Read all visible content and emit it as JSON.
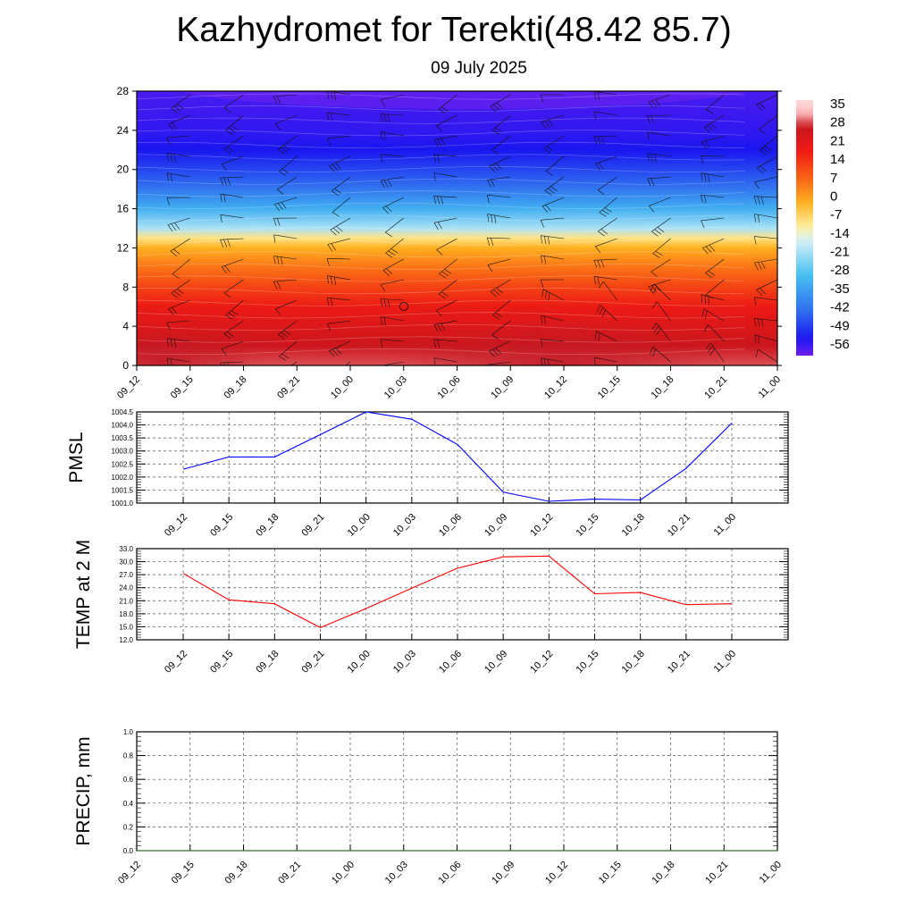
{
  "title": "Kazhydromet for Terekti(48.42 85.7)",
  "subtitle": "09 July 2025",
  "time_labels": [
    "09_12",
    "09_15",
    "09_18",
    "09_21",
    "10_00",
    "10_03",
    "10_06",
    "10_09",
    "10_12",
    "10_15",
    "10_18",
    "10_21",
    "11_00"
  ],
  "chart_data": [
    {
      "type": "heatmap",
      "name": "temperature-wind-cross-section",
      "x": [
        "09_12",
        "09_15",
        "09_18",
        "09_21",
        "10_00",
        "10_03",
        "10_06",
        "10_09",
        "10_12",
        "10_15",
        "10_18",
        "10_21",
        "11_00"
      ],
      "y_ticks": [
        0,
        4,
        8,
        12,
        16,
        20,
        24,
        28
      ],
      "ylim": [
        0,
        28
      ],
      "colorbar_ticks": [
        35,
        28,
        21,
        14,
        7,
        0,
        -7,
        -14,
        -21,
        -28,
        -35,
        -42,
        -49,
        -56
      ],
      "colorbar_range": [
        -63,
        42
      ],
      "temperature_profile_by_level": [
        {
          "y": 0,
          "t": 33
        },
        {
          "y": 2,
          "t": 30
        },
        {
          "y": 4,
          "t": 26
        },
        {
          "y": 6,
          "t": 22
        },
        {
          "y": 8,
          "t": 15
        },
        {
          "y": 10,
          "t": 8
        },
        {
          "y": 12,
          "t": 0
        },
        {
          "y": 13,
          "t": -8
        },
        {
          "y": 14,
          "t": -20
        },
        {
          "y": 16,
          "t": -33
        },
        {
          "y": 18,
          "t": -43
        },
        {
          "y": 20,
          "t": -50
        },
        {
          "y": 22,
          "t": -56
        },
        {
          "y": 24,
          "t": -58
        },
        {
          "y": 26,
          "t": -59
        },
        {
          "y": 28,
          "t": -60
        }
      ],
      "colors": {
        "warm_max": "#c8161e",
        "red": "#f01a14",
        "orange": "#fa6414",
        "amber": "#ffb020",
        "yellow": "#fff0a0",
        "light_cyan": "#d4f0fa",
        "cyan": "#46c0f0",
        "blue": "#2e6cf0",
        "deep_blue": "#1a16f0",
        "violet": "#6e1ef0",
        "pale_top": "#ffc4c4"
      }
    },
    {
      "type": "line",
      "name": "PMSL",
      "ylabel": "PMSL",
      "x": [
        "09_12",
        "09_15",
        "09_18",
        "09_21",
        "10_00",
        "10_03",
        "10_06",
        "10_09",
        "10_12",
        "10_15",
        "10_18",
        "10_21",
        "11_00"
      ],
      "y_ticks": [
        1001.0,
        1001.5,
        1002.0,
        1002.5,
        1003.0,
        1003.5,
        1004.0,
        1004.5
      ],
      "y_tick_labels": [
        "1001.0",
        "1001.5",
        "1002.0",
        "1002.5",
        "1003.0",
        "1003.5",
        "1004.0",
        "1004.5"
      ],
      "ylim": [
        1001.0,
        1004.5
      ],
      "values": [
        1002.3,
        1002.77,
        1002.77,
        1003.63,
        1004.5,
        1004.22,
        1003.25,
        1001.42,
        1001.07,
        1001.15,
        1001.12,
        1002.33,
        1004.07
      ],
      "color": "#0000ff",
      "grid": true
    },
    {
      "type": "line",
      "name": "TEMP at 2 M",
      "ylabel": "TEMP at 2 M",
      "x": [
        "09_12",
        "09_15",
        "09_18",
        "09_21",
        "10_00",
        "10_03",
        "10_06",
        "10_09",
        "10_12",
        "10_15",
        "10_18",
        "10_21",
        "11_00"
      ],
      "y_ticks": [
        12.0,
        15.0,
        18.0,
        21.0,
        24.0,
        27.0,
        30.0,
        33.0
      ],
      "y_tick_labels": [
        "12.0",
        "15.0",
        "18.0",
        "21.0",
        "24.0",
        "27.0",
        "30.0",
        "33.0"
      ],
      "ylim": [
        12.0,
        33.0
      ],
      "values": [
        27.3,
        21.2,
        20.3,
        14.8,
        19.2,
        23.9,
        28.5,
        31.1,
        31.3,
        22.6,
        22.9,
        20.1,
        20.3
      ],
      "color": "#ff0000",
      "grid": true
    },
    {
      "type": "line",
      "name": "PRECIP, mm",
      "ylabel": "PRECIP, mm",
      "x": [
        "09_12",
        "09_15",
        "09_18",
        "09_21",
        "10_00",
        "10_03",
        "10_06",
        "10_09",
        "10_12",
        "10_15",
        "10_18",
        "10_21",
        "11_00"
      ],
      "y_ticks": [
        0.0,
        0.2,
        0.4,
        0.6,
        0.8,
        1.0
      ],
      "y_tick_labels": [
        "0.0",
        "0.2",
        "0.4",
        "0.6",
        "0.8",
        "1.0"
      ],
      "ylim": [
        0.0,
        1.0
      ],
      "values": [
        0,
        0,
        0,
        0,
        0,
        0,
        0,
        0,
        0,
        0,
        0,
        0,
        0
      ],
      "color": "#2e7d32",
      "grid": true
    }
  ]
}
